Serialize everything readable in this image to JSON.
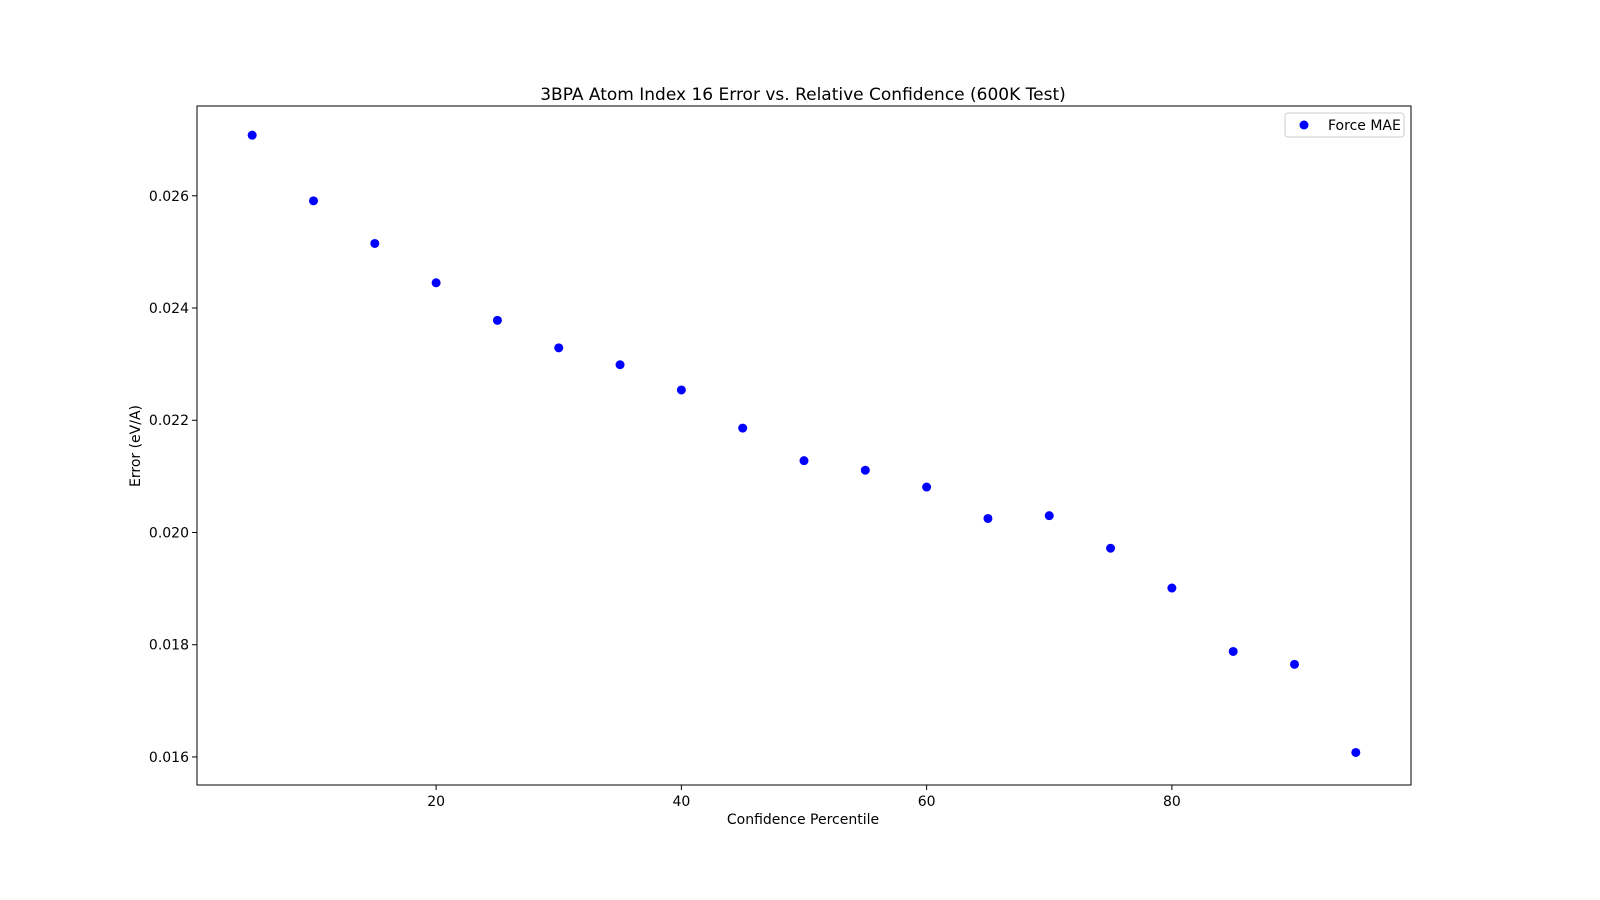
{
  "chart_data": {
    "type": "scatter",
    "title": "3BPA Atom Index 16 Error vs. Relative Confidence (600K Test)",
    "xlabel": "Confidence Percentile",
    "ylabel": "Error (eV/A)",
    "xlim": [
      0.5,
      99.5
    ],
    "ylim": [
      0.0155,
      0.0276
    ],
    "xticks": [
      20,
      40,
      60,
      80
    ],
    "xtick_labels": [
      "20",
      "40",
      "60",
      "80"
    ],
    "yticks": [
      0.016,
      0.018,
      0.02,
      0.022,
      0.024,
      0.026
    ],
    "ytick_labels": [
      "0.016",
      "0.018",
      "0.020",
      "0.022",
      "0.024",
      "0.026"
    ],
    "grid": false,
    "legend_position": "top-right",
    "series": [
      {
        "name": "Force MAE",
        "color": "#0000ff",
        "x": [
          5,
          10,
          15,
          20,
          25,
          30,
          35,
          40,
          45,
          50,
          55,
          60,
          65,
          70,
          75,
          80,
          85,
          90,
          95
        ],
        "y": [
          0.02708,
          0.02591,
          0.02515,
          0.02445,
          0.02378,
          0.02329,
          0.02299,
          0.02254,
          0.02186,
          0.02128,
          0.02111,
          0.02081,
          0.02025,
          0.0203,
          0.01972,
          0.01901,
          0.01788,
          0.01765,
          0.01608
        ]
      }
    ]
  }
}
